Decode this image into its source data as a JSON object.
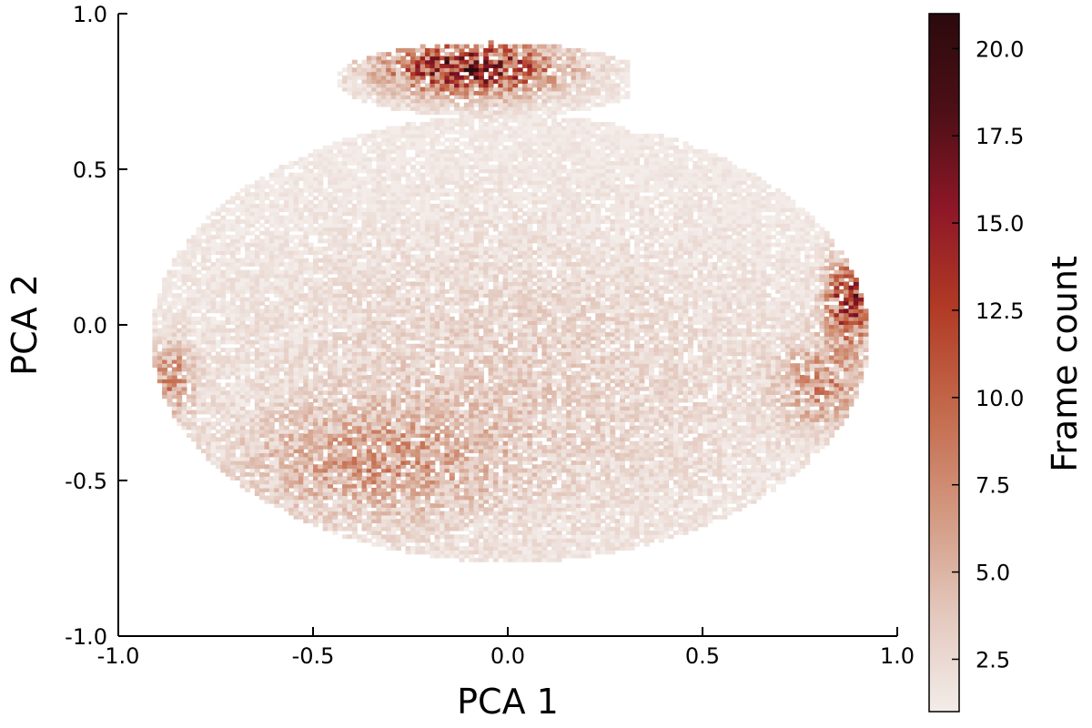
{
  "chart_data": {
    "type": "heatmap",
    "title": "",
    "xlabel": "PCA 1",
    "ylabel": "PCA 2",
    "xlim": [
      -1.0,
      1.0
    ],
    "ylim": [
      -1.0,
      1.0
    ],
    "x_ticks": [
      "-1.0",
      "-0.5",
      "0.0",
      "0.5",
      "1.0"
    ],
    "y_ticks": [
      "1.0",
      "0.5",
      "0.0",
      "-0.5",
      "-1.0"
    ],
    "grid": false,
    "colorbar": {
      "label": "Frame count",
      "range": [
        1.0,
        21.0
      ],
      "ticks": [
        "20.0",
        "17.5",
        "15.0",
        "12.5",
        "10.0",
        "7.5",
        "5.0",
        "2.5"
      ],
      "colormap": [
        "#f3ece9",
        "#e3c8bd",
        "#d39a82",
        "#c46a4c",
        "#b13a25",
        "#8e1727",
        "#4d0f16",
        "#2b0a0d"
      ]
    },
    "density_regions": [
      {
        "label": "top",
        "x": -0.1,
        "y": 0.82,
        "max_count": 21
      },
      {
        "label": "right",
        "x": 0.87,
        "y": 0.07,
        "max_count": 18
      },
      {
        "label": "right-lower",
        "x": 0.8,
        "y": -0.2,
        "max_count": 9
      },
      {
        "label": "left",
        "x": -0.87,
        "y": -0.18,
        "max_count": 9
      },
      {
        "label": "bottom",
        "x": -0.35,
        "y": -0.45,
        "max_count": 7
      },
      {
        "label": "center",
        "x": 0.0,
        "y": -0.2,
        "max_count": 4
      }
    ]
  }
}
